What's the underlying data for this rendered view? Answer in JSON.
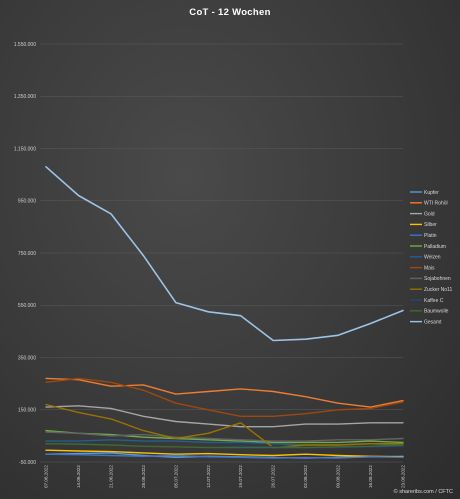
{
  "chart_data": {
    "type": "line",
    "title": "CoT - 12 Wochen",
    "xlabel": "",
    "ylabel": "",
    "ylim": [
      -50000,
      1550000
    ],
    "yticks": [
      -50000,
      150000,
      350000,
      550000,
      750000,
      950000,
      1150000,
      1350000,
      1550000
    ],
    "ytick_labels": [
      "-50.000",
      "150.000",
      "350.000",
      "550.000",
      "750.000",
      "950.000",
      "1.150.000",
      "1.350.000",
      "1.550.000"
    ],
    "grid": true,
    "legend_position": "right",
    "categories": [
      "07.06.2022",
      "14.06.2022",
      "21.06.2022",
      "28.06.2022",
      "05.07.2022",
      "12.07.2022",
      "19.07.2022",
      "26.07.2022",
      "02.08.2022",
      "09.08.2022",
      "16.08.2022",
      "23.08.2022"
    ],
    "series": [
      {
        "name": "Kupfer",
        "color": "#5b9bd5",
        "values": [
          -20000,
          -18000,
          -15000,
          -25000,
          -32000,
          -28000,
          -30000,
          -33000,
          -35000,
          -32000,
          -30000,
          -28000
        ]
      },
      {
        "name": "WTI Rohöl",
        "color": "#ed7d31",
        "values": [
          270000,
          265000,
          240000,
          245000,
          210000,
          220000,
          230000,
          220000,
          200000,
          175000,
          160000,
          185000
        ]
      },
      {
        "name": "Gold",
        "color": "#a5a5a5",
        "values": [
          160000,
          165000,
          155000,
          125000,
          105000,
          95000,
          85000,
          85000,
          95000,
          95000,
          100000,
          100000
        ]
      },
      {
        "name": "Silber",
        "color": "#ffc000",
        "values": [
          -5000,
          -8000,
          -10000,
          -15000,
          -20000,
          -18000,
          -22000,
          -25000,
          -20000,
          -25000,
          -28000,
          -30000
        ]
      },
      {
        "name": "Platin",
        "color": "#4472c4",
        "values": [
          -20000,
          -22000,
          -25000,
          -28000,
          -25000,
          -30000,
          -32000,
          -35000,
          -33000,
          -35000,
          -30000,
          -32000
        ]
      },
      {
        "name": "Palladium",
        "color": "#70ad47",
        "values": [
          70000,
          60000,
          55000,
          45000,
          40000,
          35000,
          30000,
          25000,
          25000,
          25000,
          30000,
          25000
        ]
      },
      {
        "name": "Weizen",
        "color": "#255e91",
        "values": [
          30000,
          30000,
          35000,
          30000,
          30000,
          25000,
          25000,
          20000,
          15000,
          15000,
          20000,
          15000
        ]
      },
      {
        "name": "Mais",
        "color": "#9e480e",
        "values": [
          255000,
          270000,
          255000,
          225000,
          175000,
          150000,
          125000,
          125000,
          135000,
          150000,
          155000,
          180000
        ]
      },
      {
        "name": "Sojabohnen",
        "color": "#636363",
        "values": [
          65000,
          60000,
          50000,
          55000,
          45000,
          40000,
          35000,
          30000,
          30000,
          35000,
          35000,
          40000
        ]
      },
      {
        "name": "Zucker No11",
        "color": "#997300",
        "values": [
          170000,
          140000,
          115000,
          70000,
          40000,
          60000,
          100000,
          5000,
          15000,
          15000,
          20000,
          20000
        ]
      },
      {
        "name": "Kaffee C",
        "color": "#264478",
        "values": [
          20000,
          20000,
          15000,
          10000,
          8000,
          5000,
          10000,
          8000,
          5000,
          5000,
          8000,
          10000
        ]
      },
      {
        "name": "Baumwolle",
        "color": "#43682b",
        "values": [
          20000,
          18000,
          15000,
          10000,
          8000,
          5000,
          5000,
          5000,
          5000,
          8000,
          10000,
          15000
        ]
      },
      {
        "name": "Gesamt",
        "color": "#9dc3e6",
        "values": [
          1080000,
          970000,
          900000,
          740000,
          560000,
          525000,
          510000,
          415000,
          420000,
          435000,
          480000,
          530000
        ]
      }
    ]
  },
  "copyright": "© shareribs.com / CFTC"
}
